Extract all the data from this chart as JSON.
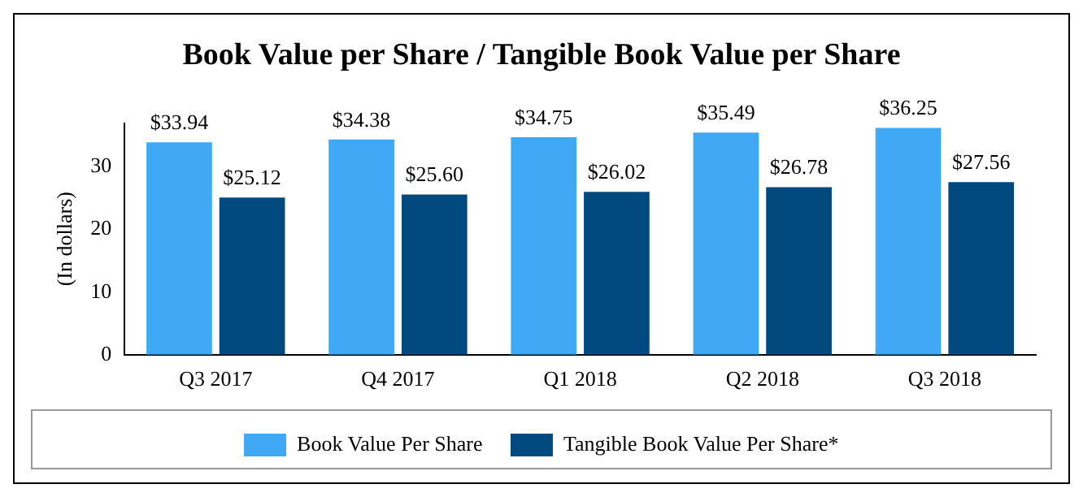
{
  "chart_data": {
    "type": "bar",
    "title": "Book Value per Share / Tangible Book Value per Share",
    "ylabel": "(In dollars)",
    "categories": [
      "Q3 2017",
      "Q4 2017",
      "Q1 2018",
      "Q2 2018",
      "Q3 2018"
    ],
    "series": [
      {
        "name": "Book Value Per Share",
        "color": "#3fa9f5",
        "values": [
          33.94,
          34.38,
          34.75,
          35.49,
          36.25
        ],
        "value_labels": [
          "$33.94",
          "$34.38",
          "$34.75",
          "$35.49",
          "$36.25"
        ]
      },
      {
        "name": "Tangible Book Value Per Share*",
        "color": "#004a80",
        "values": [
          25.12,
          25.6,
          26.02,
          26.78,
          27.56
        ],
        "value_labels": [
          "$25.12",
          "$25.60",
          "$26.02",
          "$26.78",
          "$27.56"
        ]
      }
    ],
    "ylim": [
      0,
      37
    ],
    "yticks": [
      0,
      10,
      20,
      30
    ],
    "grid": false,
    "legend": "bottom"
  }
}
